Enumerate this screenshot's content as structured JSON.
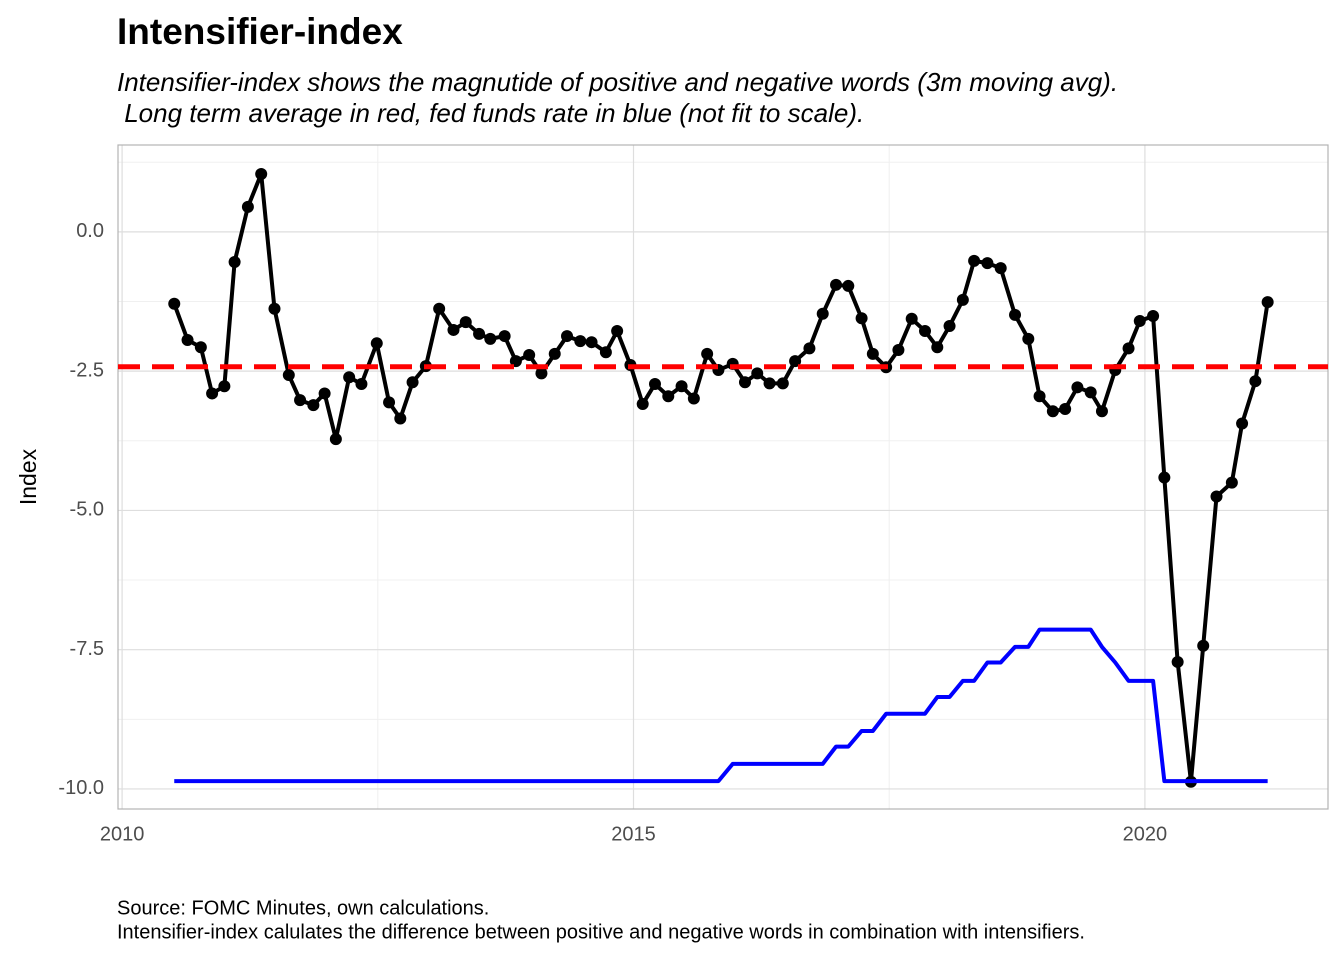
{
  "chart_data": {
    "type": "line",
    "title": "Intensifier-index",
    "subtitle": [
      "Intensifier-index shows the magnutide of positive and negative words (3m moving avg).",
      " Long term average in red, fed funds rate in blue (not fit to scale)."
    ],
    "caption": [
      "Source: FOMC Minutes, own calculations.",
      "Intensifier-index calulates the difference between positive and negative words in combination with intensifiers."
    ],
    "y_label": "Index",
    "x": [
      2010.51,
      2010.64,
      2010.77,
      2010.88,
      2011.0,
      2011.1,
      2011.23,
      2011.36,
      2011.49,
      2011.63,
      2011.74,
      2011.87,
      2011.98,
      2012.09,
      2012.22,
      2012.34,
      2012.49,
      2012.61,
      2012.72,
      2012.84,
      2012.97,
      2013.1,
      2013.24,
      2013.36,
      2013.49,
      2013.6,
      2013.74,
      2013.85,
      2013.98,
      2014.1,
      2014.23,
      2014.35,
      2014.48,
      2014.59,
      2014.73,
      2014.84,
      2014.97,
      2015.09,
      2015.21,
      2015.34,
      2015.47,
      2015.59,
      2015.72,
      2015.83,
      2015.97,
      2016.09,
      2016.21,
      2016.33,
      2016.46,
      2016.58,
      2016.72,
      2016.85,
      2016.98,
      2017.1,
      2017.23,
      2017.34,
      2017.47,
      2017.59,
      2017.72,
      2017.85,
      2017.97,
      2018.09,
      2018.22,
      2018.33,
      2018.46,
      2018.59,
      2018.73,
      2018.86,
      2018.97,
      2019.1,
      2019.22,
      2019.34,
      2019.47,
      2019.58,
      2019.71,
      2019.84,
      2019.95,
      2020.08,
      2020.19,
      2020.32,
      2020.45,
      2020.57,
      2020.7,
      2020.85,
      2020.95,
      2021.08,
      2021.2
    ],
    "series": [
      {
        "color": "#000000",
        "markers": true,
        "values": [
          -1.29,
          -1.94,
          -2.07,
          -2.9,
          -2.77,
          -0.54,
          0.45,
          1.04,
          -1.38,
          -2.57,
          -3.02,
          -3.11,
          -2.9,
          -3.72,
          -2.61,
          -2.73,
          -2.0,
          -3.06,
          -3.35,
          -2.7,
          -2.41,
          -1.38,
          -1.76,
          -1.62,
          -1.83,
          -1.92,
          -1.87,
          -2.32,
          -2.21,
          -2.54,
          -2.19,
          -1.87,
          -1.96,
          -1.98,
          -2.16,
          -1.78,
          -2.39,
          -3.09,
          -2.73,
          -2.95,
          -2.77,
          -2.99,
          -2.19,
          -2.48,
          -2.37,
          -2.7,
          -2.54,
          -2.72,
          -2.72,
          -2.32,
          -2.09,
          -1.47,
          -0.95,
          -0.97,
          -1.55,
          -2.19,
          -2.43,
          -2.12,
          -1.56,
          -1.78,
          -2.07,
          -1.69,
          -1.22,
          -0.52,
          -0.56,
          -0.65,
          -1.49,
          -1.92,
          -2.95,
          -3.22,
          -3.18,
          -2.79,
          -2.88,
          -3.22,
          -2.48,
          -2.09,
          -1.6,
          -1.51,
          -4.41,
          -7.72,
          -9.87,
          -7.43,
          -4.75,
          -4.5,
          -3.44,
          -2.68,
          -1.26
        ]
      },
      {
        "color": "#0000ff",
        "markers": false,
        "values": [
          -9.86,
          -9.86,
          -9.86,
          -9.86,
          -9.86,
          -9.86,
          -9.86,
          -9.86,
          -9.86,
          -9.86,
          -9.86,
          -9.86,
          -9.86,
          -9.86,
          -9.86,
          -9.86,
          -9.86,
          -9.86,
          -9.86,
          -9.86,
          -9.86,
          -9.86,
          -9.86,
          -9.86,
          -9.86,
          -9.86,
          -9.86,
          -9.86,
          -9.86,
          -9.86,
          -9.86,
          -9.86,
          -9.86,
          -9.86,
          -9.86,
          -9.86,
          -9.86,
          -9.86,
          -9.86,
          -9.86,
          -9.86,
          -9.86,
          -9.86,
          -9.86,
          -9.55,
          -9.55,
          -9.55,
          -9.55,
          -9.55,
          -9.55,
          -9.55,
          -9.55,
          -9.24,
          -9.24,
          -8.96,
          -8.96,
          -8.65,
          -8.65,
          -8.65,
          -8.65,
          -8.35,
          -8.35,
          -8.06,
          -8.06,
          -7.73,
          -7.73,
          -7.45,
          -7.45,
          -7.14,
          -7.14,
          -7.14,
          -7.14,
          -7.14,
          -7.45,
          -7.73,
          -8.06,
          -8.06,
          -8.06,
          -9.86,
          -9.86,
          -9.86,
          -9.86,
          -9.86,
          -9.86,
          -9.86,
          -9.86,
          -9.86
        ]
      }
    ],
    "hline": {
      "value": -2.42,
      "color": "#ff0000",
      "dashed": true
    },
    "xlim": [
      2009.96,
      2021.79
    ],
    "ylim": [
      -10.36,
      1.56
    ],
    "xticks": [
      2010,
      2015,
      2020
    ],
    "yticks": [
      {
        "value": 0,
        "label": "0.0"
      },
      -2.5,
      {
        "value": -5,
        "label": "-5.0"
      },
      -7.5,
      {
        "value": -10,
        "label": "-10.0"
      }
    ],
    "xminor": [
      2012.5,
      2017.5
    ],
    "yminor": [
      1.25,
      -1.25,
      -3.75,
      -6.25,
      -8.75
    ],
    "grid": true
  }
}
